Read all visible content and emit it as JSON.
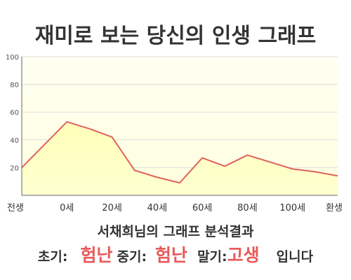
{
  "title": "재미로 보는 당신의 인생 그래프",
  "chart_data": {
    "type": "area",
    "x_tick_labels": [
      "전생",
      "0세",
      "20세",
      "40세",
      "60세",
      "80세",
      "100세",
      "환생"
    ],
    "y_ticks": [
      20,
      40,
      60,
      80,
      100
    ],
    "ylim": [
      0,
      100
    ],
    "grid": true,
    "series": [
      {
        "x": [
          -20,
          0,
          10,
          20,
          30,
          40,
          50,
          60,
          70,
          80,
          90,
          100,
          110,
          120
        ],
        "values": [
          20,
          53,
          48,
          42,
          18,
          13,
          9,
          27,
          21,
          29,
          24,
          19,
          17,
          14
        ]
      }
    ],
    "colors": {
      "line": "#e0625e",
      "fill": "#ffffc4",
      "plot_background": "#fffff0",
      "grid": "#dedede"
    }
  },
  "subtitle": "서채희님의 그래프 분석결과",
  "verdict": {
    "early_label": "초기:",
    "early_value": "험난",
    "mid_label": "중기:",
    "mid_value": "험난",
    "late_label": "말기:",
    "late_value": "고생",
    "suffix": "입니다"
  }
}
